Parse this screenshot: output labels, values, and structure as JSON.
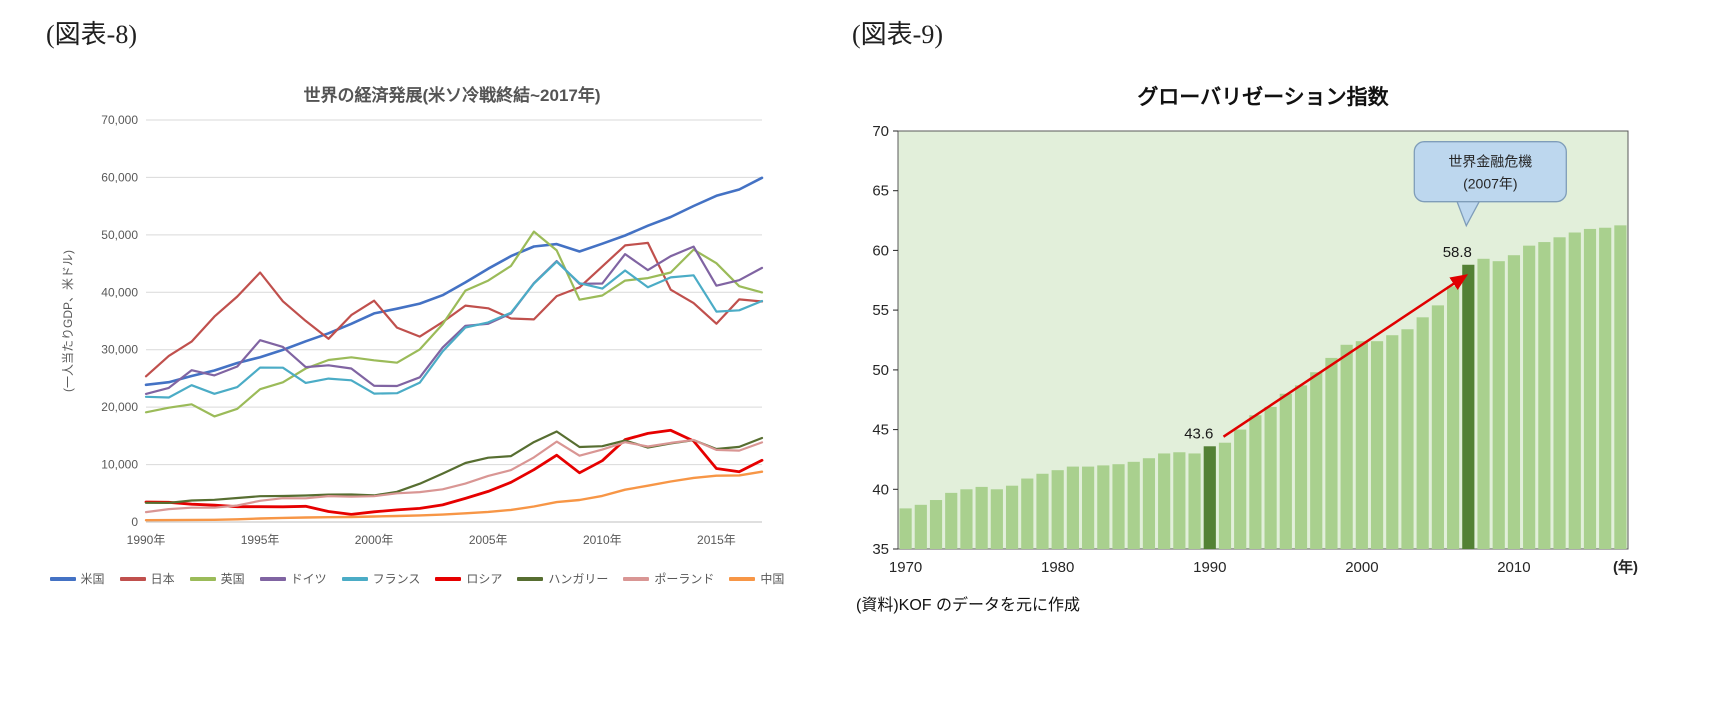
{
  "figures": {
    "fig8_label": "(図表-8)",
    "fig9_label": "(図表-9)"
  },
  "chart_data": [
    {
      "type": "line",
      "figure_label": "(図表-8)",
      "title": "世界の経済発展(米ソ冷戦終結~2017年)",
      "ylabel": "(一人当たりGDP、米ドル)",
      "xlabel": "",
      "grid": true,
      "legend_position": "bottom",
      "ylim": [
        0,
        70000
      ],
      "y_ticks": [
        0,
        10000,
        20000,
        30000,
        40000,
        50000,
        60000,
        70000
      ],
      "y_tick_labels": [
        "0",
        "10,000",
        "20,000",
        "30,000",
        "40,000",
        "50,000",
        "60,000",
        "70,000"
      ],
      "x": [
        1990,
        1991,
        1992,
        1993,
        1994,
        1995,
        1996,
        1997,
        1998,
        1999,
        2000,
        2001,
        2002,
        2003,
        2004,
        2005,
        2006,
        2007,
        2008,
        2009,
        2010,
        2011,
        2012,
        2013,
        2014,
        2015,
        2016,
        2017
      ],
      "x_tick_values": [
        1990,
        1995,
        2000,
        2005,
        2010,
        2015
      ],
      "x_tick_labels": [
        "1990年",
        "1995年",
        "2000年",
        "2005年",
        "2010年",
        "2015年"
      ],
      "series": [
        {
          "name": "米国",
          "color": "#4472c4",
          "width": 2.6,
          "values": [
            23889,
            24342,
            25419,
            26387,
            27695,
            28691,
            29968,
            31459,
            32854,
            34514,
            36330,
            37134,
            38023,
            39496,
            41713,
            44115,
            46299,
            47976,
            48383,
            47100,
            48466,
            49883,
            51603,
            53107,
            55033,
            56803,
            57904,
            59928
          ]
        },
        {
          "name": "日本",
          "color": "#c0504d",
          "width": 2.2,
          "values": [
            25371,
            28915,
            31415,
            35766,
            39269,
            43440,
            38437,
            35022,
            31903,
            36027,
            38532,
            33846,
            32289,
            34808,
            37689,
            37218,
            35434,
            35275,
            39339,
            40855,
            44508,
            48168,
            48603,
            40454,
            38109,
            34524,
            38762,
            38387
          ]
        },
        {
          "name": "英国",
          "color": "#9bbb59",
          "width": 2.2,
          "values": [
            19095,
            19900,
            20487,
            18389,
            19709,
            23123,
            24333,
            26734,
            28214,
            28671,
            28150,
            27746,
            30057,
            34419,
            40290,
            42030,
            44599,
            50567,
            47287,
            38713,
            39436,
            42038,
            42463,
            43446,
            47426,
            45071,
            41064,
            39977
          ]
        },
        {
          "name": "ドイツ",
          "color": "#8064a2",
          "width": 2.2,
          "values": [
            22304,
            23358,
            26438,
            25523,
            27077,
            31658,
            30486,
            26966,
            27289,
            26726,
            23719,
            23687,
            25205,
            30360,
            34166,
            34507,
            36323,
            41587,
            45427,
            41485,
            41531,
            46645,
            43858,
            46286,
            47960,
            41140,
            42099,
            44240
          ]
        },
        {
          "name": "フランス",
          "color": "#4bacc6",
          "width": 2.2,
          "values": [
            21794,
            21675,
            23814,
            22316,
            23497,
            26890,
            26871,
            24229,
            24974,
            24673,
            22364,
            22434,
            24276,
            29691,
            33875,
            34760,
            36444,
            41508,
            45334,
            41575,
            40638,
            43790,
            40875,
            42593,
            42955,
            36638,
            36857,
            38477
          ]
        },
        {
          "name": "ロシア",
          "color": "#e60000",
          "width": 2.8,
          "values": [
            3485,
            3427,
            3095,
            2929,
            2663,
            2666,
            2644,
            2738,
            1835,
            1331,
            1772,
            2100,
            2375,
            2975,
            4102,
            5323,
            6920,
            9101,
            11635,
            8562,
            10675,
            14351,
            15435,
            15974,
            14096,
            9313,
            8745,
            10751
          ]
        },
        {
          "name": "ハンガリー",
          "color": "#576e31",
          "width": 2.2,
          "values": [
            3349,
            3333,
            3751,
            3873,
            4181,
            4494,
            4528,
            4612,
            4775,
            4797,
            4624,
            5266,
            6663,
            8420,
            10270,
            11200,
            11476,
            13918,
            15753,
            13058,
            13191,
            14199,
            12950,
            13687,
            14267,
            12706,
            13071,
            14621
          ]
        },
        {
          "name": "ポーランド",
          "color": "#d99694",
          "width": 2.2,
          "values": [
            1731,
            2247,
            2492,
            2497,
            2874,
            3687,
            4147,
            4123,
            4518,
            4398,
            4501,
            4991,
            5207,
            5701,
            6690,
            8021,
            9035,
            11254,
            13996,
            11542,
            12613,
            13893,
            13142,
            13776,
            14271,
            12560,
            12433,
            13864
          ]
        },
        {
          "name": "中国",
          "color": "#f79646",
          "width": 2.4,
          "values": [
            318,
            333,
            366,
            377,
            473,
            610,
            709,
            782,
            829,
            873,
            959,
            1053,
            1149,
            1289,
            1509,
            1753,
            2099,
            2694,
            3468,
            3832,
            4550,
            5618,
            6317,
            7051,
            7679,
            8069,
            8117,
            8759
          ]
        }
      ]
    },
    {
      "type": "bar",
      "figure_label": "(図表-9)",
      "title": "グローバリゼーション指数",
      "source": "(資料)KOF のデータを元に作成",
      "x_axis_unit": "(年)",
      "ylim": [
        35,
        70
      ],
      "y_ticks": [
        35,
        40,
        45,
        50,
        55,
        60,
        65,
        70
      ],
      "x": [
        1970,
        1971,
        1972,
        1973,
        1974,
        1975,
        1976,
        1977,
        1978,
        1979,
        1980,
        1981,
        1982,
        1983,
        1984,
        1985,
        1986,
        1987,
        1988,
        1989,
        1990,
        1991,
        1992,
        1993,
        1994,
        1995,
        1996,
        1997,
        1998,
        1999,
        2000,
        2001,
        2002,
        2003,
        2004,
        2005,
        2006,
        2007,
        2008,
        2009,
        2010,
        2011,
        2012,
        2013,
        2014,
        2015,
        2016,
        2017
      ],
      "x_tick_values": [
        1970,
        1980,
        1990,
        2000,
        2010
      ],
      "values": [
        38.4,
        38.7,
        39.1,
        39.7,
        40.0,
        40.2,
        40.0,
        40.3,
        40.9,
        41.3,
        41.6,
        41.9,
        41.9,
        42.0,
        42.1,
        42.3,
        42.6,
        43.0,
        43.1,
        43.0,
        43.6,
        43.9,
        45.0,
        46.2,
        46.9,
        48.0,
        48.7,
        49.8,
        51.0,
        52.1,
        52.4,
        52.4,
        52.9,
        53.4,
        54.4,
        55.4,
        57.0,
        58.8,
        59.3,
        59.1,
        59.6,
        60.4,
        60.7,
        61.1,
        61.5,
        61.8,
        61.9,
        62.1
      ],
      "plot_bg": "#e2efda",
      "bar_color": "#a9d08e",
      "highlight_color": "#538135",
      "arrow_color": "#e00000",
      "highlighted": [
        {
          "year": 1990,
          "value": 43.6,
          "label": "43.6"
        },
        {
          "year": 2007,
          "value": 58.8,
          "label": "58.8"
        }
      ],
      "annotation": {
        "lines": [
          "世界金融危機",
          "(2007年)"
        ],
        "fill": "#bdd7ee",
        "border": "#7f9db9"
      }
    }
  ]
}
